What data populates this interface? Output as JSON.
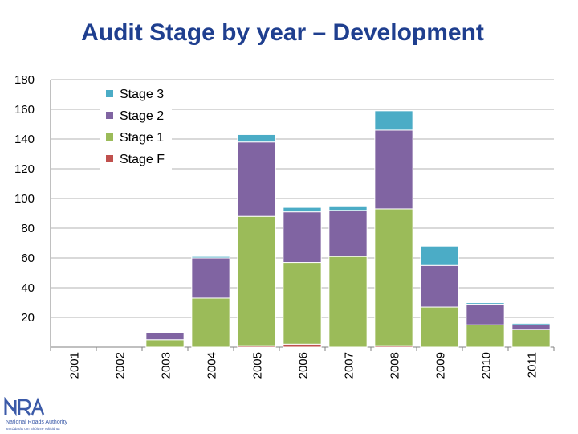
{
  "slide": {
    "title": "Audit Stage by year – Development"
  },
  "logo": {
    "mark": "NRA",
    "name": "National Roads Authority",
    "tagline": "an tÚdarás um Bhóithre Náisiúnta"
  },
  "chart_data": {
    "type": "bar",
    "stacked": true,
    "title": "Audit Stage by year – Development",
    "xlabel": "",
    "ylabel": "",
    "ylim": [
      0,
      180
    ],
    "yticks": [
      20,
      40,
      60,
      80,
      100,
      120,
      140,
      160,
      180
    ],
    "grid": true,
    "legend_position": "top-left",
    "categories": [
      "2001",
      "2002",
      "2003",
      "2004",
      "2005",
      "2006",
      "2007",
      "2008",
      "2009",
      "2010",
      "2011"
    ],
    "series": [
      {
        "name": "Stage F",
        "color": "#c0504d",
        "values": [
          0,
          0,
          0,
          0,
          1,
          2,
          0,
          1,
          0,
          0,
          0
        ]
      },
      {
        "name": "Stage 1",
        "color": "#9bbb59",
        "values": [
          0,
          0,
          5,
          33,
          87,
          55,
          61,
          92,
          27,
          15,
          12
        ]
      },
      {
        "name": "Stage 2",
        "color": "#8064a2",
        "values": [
          0,
          0,
          5,
          27,
          50,
          34,
          31,
          53,
          28,
          14,
          3
        ]
      },
      {
        "name": "Stage 3",
        "color": "#4bacc6",
        "values": [
          0,
          0,
          0,
          1,
          5,
          3,
          3,
          13,
          13,
          1,
          1
        ]
      }
    ]
  }
}
